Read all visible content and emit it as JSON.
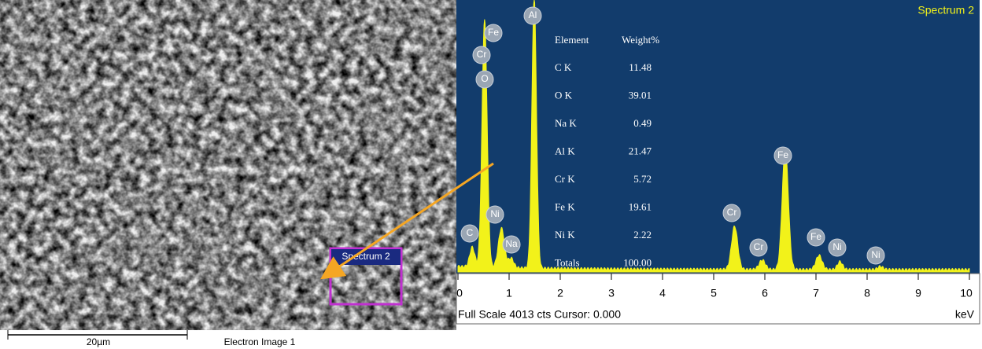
{
  "sem": {
    "box_label": "Spectrum 2",
    "scale_bar": "20µm",
    "caption": "Electron Image 1"
  },
  "spectrum": {
    "title": "Spectrum 2",
    "table": {
      "header": [
        "Element",
        "Weight%"
      ],
      "rows": [
        [
          "C K",
          "11.48"
        ],
        [
          "O K",
          "39.01"
        ],
        [
          "Na K",
          "0.49"
        ],
        [
          "Al K",
          "21.47"
        ],
        [
          "Cr K",
          "5.72"
        ],
        [
          "Fe K",
          "19.61"
        ],
        [
          "Ni K",
          "2.22"
        ],
        [
          "Totals",
          "100.00"
        ]
      ]
    },
    "peak_labels": [
      "Fe",
      "Cr",
      "O",
      "Al",
      "C",
      "Ni",
      "Na",
      "Cr",
      "Cr",
      "Fe",
      "Fe",
      "Ni",
      "Ni"
    ],
    "x_ticks": [
      "0",
      "1",
      "2",
      "3",
      "4",
      "5",
      "6",
      "7",
      "8",
      "9",
      "10"
    ],
    "footer": "Full Scale 4013 cts Cursor: 0.000",
    "unit": "keV"
  }
}
